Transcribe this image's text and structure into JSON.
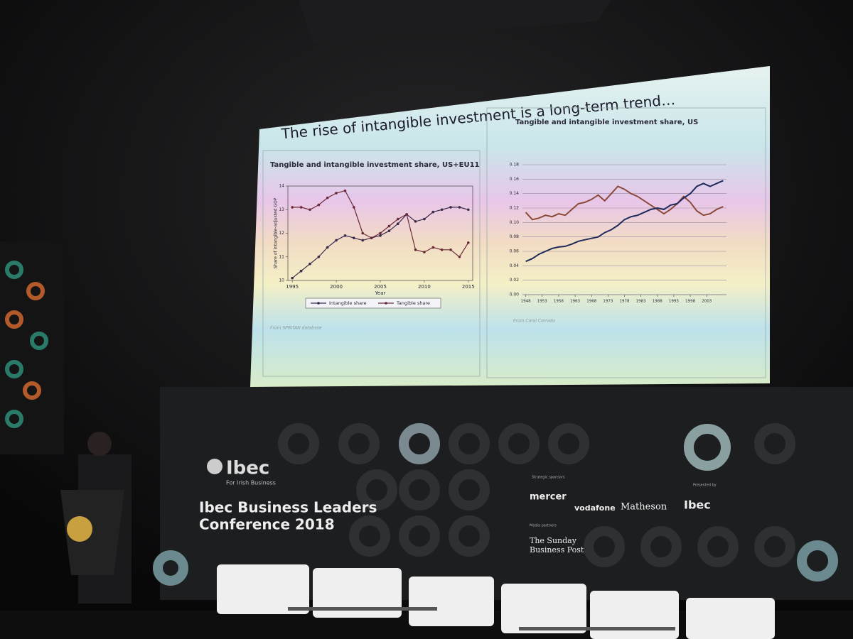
{
  "slide": {
    "title": "The rise of intangible investment is a long-term trend…"
  },
  "chart_data": [
    {
      "type": "line",
      "title": "Tangible and intangible investment share, US+EU11",
      "y_label": "Share of intangible-adjusted GDP",
      "x_label": "Year",
      "source": "From SPINTAN database",
      "x": [
        1995,
        1996,
        1997,
        1998,
        1999,
        2000,
        2001,
        2002,
        2003,
        2004,
        2005,
        2006,
        2007,
        2008,
        2009,
        2010,
        2011,
        2012,
        2013,
        2014,
        2015
      ],
      "series": [
        {
          "name": "Intangible share",
          "color": "#3a2a4a",
          "values": [
            10.1,
            10.4,
            10.7,
            11.0,
            11.4,
            11.7,
            11.9,
            11.8,
            11.7,
            11.8,
            11.9,
            12.1,
            12.4,
            12.8,
            12.5,
            12.6,
            12.9,
            13.0,
            13.1,
            13.1,
            13.0
          ]
        },
        {
          "name": "Tangible share",
          "color": "#6a2a3a",
          "values": [
            13.1,
            13.1,
            13.0,
            13.2,
            13.5,
            13.7,
            13.8,
            13.1,
            12.0,
            11.8,
            12.0,
            12.3,
            12.6,
            12.8,
            11.3,
            11.2,
            11.4,
            11.3,
            11.3,
            11.0,
            11.6
          ]
        }
      ],
      "xlim": [
        1994.5,
        2015.5
      ],
      "xticks": [
        1995,
        2000,
        2005,
        2010,
        2015
      ],
      "ylim": [
        10,
        14
      ],
      "yticks": [
        10,
        11,
        12,
        13,
        14
      ],
      "markers": true,
      "grid": false,
      "legend": "bottom"
    },
    {
      "type": "line",
      "title": "Tangible and intangible investment share, US",
      "source": "From Carol Corrado",
      "x": [
        1948,
        1950,
        1952,
        1954,
        1956,
        1958,
        1960,
        1962,
        1964,
        1966,
        1968,
        1970,
        1972,
        1974,
        1976,
        1978,
        1980,
        1982,
        1984,
        1986,
        1988,
        1990,
        1992,
        1994,
        1996,
        1998,
        2000,
        2002,
        2004,
        2006,
        2008
      ],
      "series": [
        {
          "color": "#8a4a3a",
          "values": [
            0.114,
            0.104,
            0.106,
            0.11,
            0.108,
            0.112,
            0.11,
            0.118,
            0.126,
            0.128,
            0.132,
            0.138,
            0.13,
            0.14,
            0.15,
            0.146,
            0.14,
            0.136,
            0.13,
            0.124,
            0.118,
            0.112,
            0.118,
            0.126,
            0.136,
            0.128,
            0.116,
            0.11,
            0.112,
            0.118,
            0.122
          ]
        },
        {
          "color": "#1e2a5a",
          "values": [
            0.046,
            0.05,
            0.056,
            0.06,
            0.064,
            0.066,
            0.067,
            0.07,
            0.074,
            0.076,
            0.078,
            0.08,
            0.086,
            0.09,
            0.096,
            0.104,
            0.108,
            0.11,
            0.114,
            0.118,
            0.12,
            0.118,
            0.124,
            0.126,
            0.134,
            0.14,
            0.15,
            0.154,
            0.15,
            0.154,
            0.158
          ]
        }
      ],
      "xlim": [
        1947,
        2009
      ],
      "xticks": [
        1948,
        1953,
        1958,
        1963,
        1968,
        1973,
        1978,
        1983,
        1988,
        1993,
        1998,
        2003
      ],
      "ylim": [
        0,
        0.18
      ],
      "yticks": [
        {
          "value": 0,
          "label": "0.00"
        },
        0.02,
        0.04,
        0.06,
        0.08,
        {
          "value": 0.1,
          "label": "0.10"
        },
        0.12,
        0.14,
        0.16,
        0.18
      ],
      "markers": false,
      "grid": true
    }
  ],
  "banner": {
    "logo": "Ibec",
    "tagline": "For Irish Business",
    "event_line1": "Ibec Business Leaders",
    "event_line2": "Conference 2018",
    "strategic_label": "Strategic sponsors",
    "sponsors": [
      "mercer",
      "vodafone",
      "Matheson"
    ],
    "presented_label": "Presented by",
    "presenter": "Ibec",
    "media_label": "Media partners",
    "media_line1": "The Sunday",
    "media_line2": "Business Post"
  }
}
